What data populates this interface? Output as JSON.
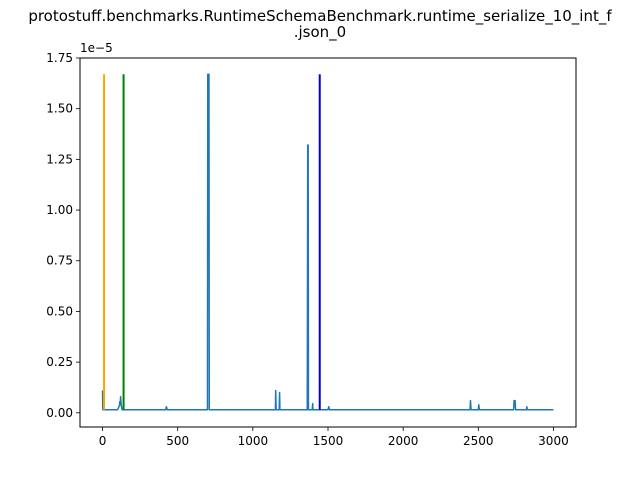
{
  "chart_data": {
    "type": "line",
    "title_line1": "protostuff.benchmarks.RuntimeSchemaBenchmark.runtime_serialize_10_int_f",
    "title_line2": ".json_0",
    "xlabel": "",
    "ylabel": "",
    "y_offset_label": "1e−5",
    "xlim": [
      -150,
      3150
    ],
    "ylim": [
      -7e-07,
      1.75e-05
    ],
    "x_ticks": [
      0,
      500,
      1000,
      1500,
      2000,
      2500,
      3000
    ],
    "x_tick_labels": [
      "0",
      "500",
      "1000",
      "1500",
      "2000",
      "2500",
      "3000"
    ],
    "y_ticks": [
      0,
      2.5e-06,
      5e-06,
      7.5e-06,
      1e-05,
      1.25e-05,
      1.5e-05,
      1.75e-05
    ],
    "y_tick_labels": [
      "0.00",
      "0.25",
      "0.50",
      "0.75",
      "1.00",
      "1.25",
      "1.50",
      "1.75"
    ],
    "grid": false,
    "baseline": 1.5e-07,
    "series": [
      {
        "color": "#1f77b4",
        "x": [
          0,
          1,
          2,
          3,
          10,
          60,
          100,
          112,
          115,
          118,
          120,
          122,
          125,
          130,
          135,
          200,
          250,
          420,
          425,
          430,
          600,
          698,
          700,
          702,
          705,
          708,
          710,
          850,
          1150,
          1152,
          1155,
          1175,
          1178,
          1180,
          1362,
          1365,
          1368,
          1370,
          1395,
          1398,
          1400,
          1500,
          1505,
          1510,
          1600,
          1800,
          2000,
          2200,
          2445,
          2448,
          2452,
          2500,
          2503,
          2507,
          2735,
          2738,
          2745,
          2748,
          2820,
          2823,
          2826,
          3000
        ],
        "y": [
          1.1e-06,
          3e-07,
          1.5e-07,
          1.5e-07,
          1.5e-07,
          1.5e-07,
          1.5e-07,
          3.5e-07,
          5.5e-07,
          4e-07,
          8e-07,
          6e-07,
          3.5e-07,
          1.5e-07,
          1.5e-07,
          1.5e-07,
          1.5e-07,
          1.5e-07,
          3e-07,
          1.5e-07,
          1.5e-07,
          1.5e-07,
          1.67e-05,
          1.67e-05,
          1.67e-05,
          1.67e-05,
          1.5e-07,
          1.5e-07,
          1.5e-07,
          1.1e-06,
          1.5e-07,
          1.5e-07,
          1e-06,
          1.5e-07,
          1.5e-07,
          1.32e-05,
          1.32e-05,
          1.5e-07,
          1.5e-07,
          4.5e-07,
          1.5e-07,
          1.5e-07,
          3e-07,
          1.5e-07,
          1.5e-07,
          1.5e-07,
          1.5e-07,
          1.5e-07,
          1.5e-07,
          6e-07,
          1.5e-07,
          1.5e-07,
          4e-07,
          1.5e-07,
          1.5e-07,
          6e-07,
          6e-07,
          1.5e-07,
          1.5e-07,
          3e-07,
          1.5e-07,
          1.5e-07
        ]
      }
    ],
    "vlines": [
      {
        "x": 10,
        "color": "#ffa500",
        "ymin": 1.5e-07,
        "ymax": 1.67e-05
      },
      {
        "x": 140,
        "color": "#008000",
        "ymin": 1.5e-07,
        "ymax": 1.67e-05
      },
      {
        "x": 1445,
        "color": "#0000cd",
        "ymin": 1.5e-07,
        "ymax": 1.67e-05
      }
    ]
  }
}
